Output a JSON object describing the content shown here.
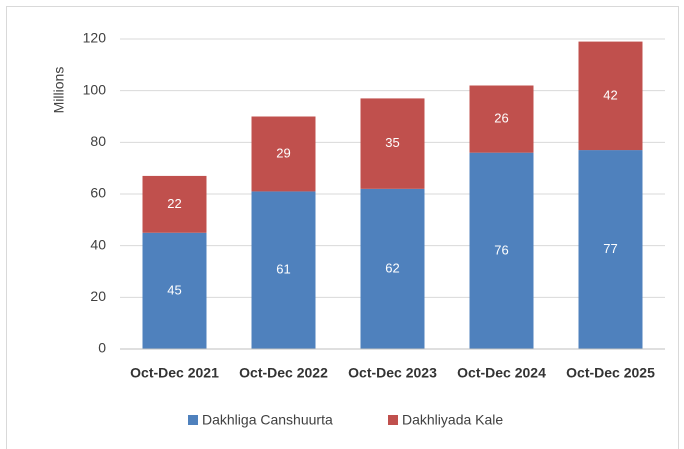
{
  "chart_data": {
    "type": "stacked_bar",
    "y_label": "Millions",
    "categories": [
      "Oct-Dec 2021",
      "Oct-Dec 2022",
      "Oct-Dec 2023",
      "Oct-Dec 2024",
      "Oct-Dec 2025"
    ],
    "series": [
      {
        "name": "Dakhliga Canshuurta",
        "color": "#4f81bd",
        "values": [
          45,
          61,
          62,
          76,
          77
        ]
      },
      {
        "name": "Dakhliyada Kale",
        "color": "#c0504d",
        "values": [
          22,
          29,
          35,
          26,
          42
        ]
      }
    ],
    "ylim": [
      0,
      120
    ],
    "yticks": [
      0,
      20,
      40,
      60,
      80,
      100,
      120
    ],
    "grid": true,
    "legend": "bottom"
  }
}
